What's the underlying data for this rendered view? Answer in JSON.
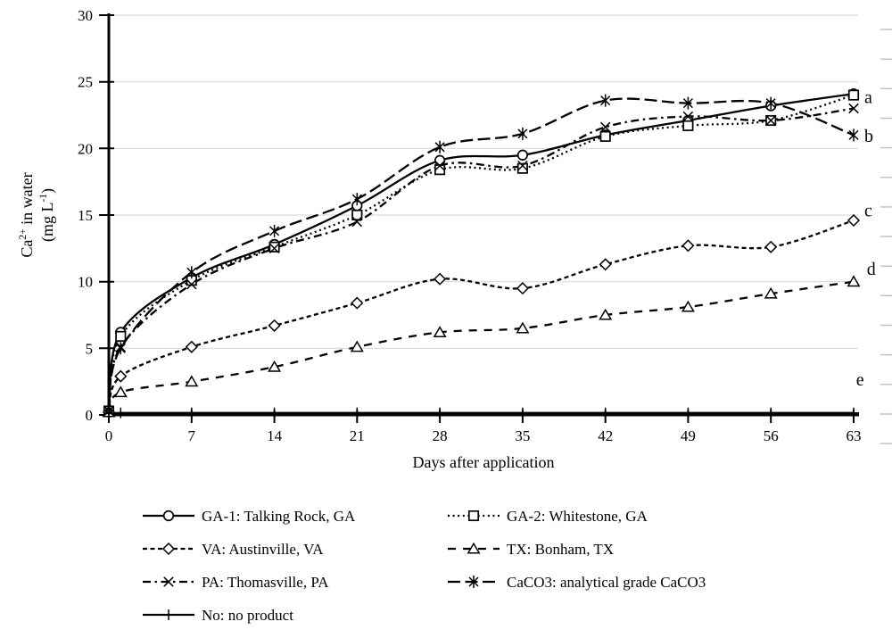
{
  "figure": {
    "background": "#ffffff"
  },
  "chart_data": {
    "type": "line",
    "title": "",
    "xlabel": "Days after application",
    "ylabel_rich": {
      "line1": [
        {
          "text": "Ca"
        },
        {
          "text": "2+",
          "sup": true
        },
        {
          "text": " in water"
        }
      ],
      "line2": [
        {
          "text": "(mg L"
        },
        {
          "text": "-1",
          "sup": true
        },
        {
          "text": ")"
        }
      ]
    },
    "x_days": [
      0,
      1,
      7,
      14,
      21,
      28,
      35,
      42,
      49,
      56,
      63
    ],
    "xticks": [
      "0",
      "7",
      "14",
      "21",
      "28",
      "35",
      "42",
      "49",
      "56",
      "63"
    ],
    "xtick_values": [
      0,
      7,
      14,
      21,
      28,
      35,
      42,
      49,
      56,
      63
    ],
    "yticks": [
      "0",
      "5",
      "10",
      "15",
      "20",
      "25",
      "30"
    ],
    "ytick_values": [
      0,
      5,
      10,
      15,
      20,
      25,
      30
    ],
    "xlim": [
      0,
      63
    ],
    "ylim": [
      0,
      30
    ],
    "grid": true,
    "legend_position": "bottom-two-columns",
    "series": [
      {
        "name": "GA-1: Talking Rock, GA",
        "marker": "circle",
        "line_style": "solid",
        "values": [
          0.3,
          6.2,
          10.3,
          12.8,
          15.7,
          19.1,
          19.5,
          21.0,
          22.1,
          23.2,
          24.1
        ]
      },
      {
        "name": "GA-2: Whitestone, GA",
        "marker": "square",
        "line_style": "dotted",
        "values": [
          0.3,
          5.9,
          10.1,
          12.6,
          15.0,
          18.4,
          18.5,
          20.9,
          21.7,
          22.1,
          24.0
        ]
      },
      {
        "name": "VA: Austinville, VA",
        "marker": "diamond",
        "line_style": "dashed",
        "values": [
          0.2,
          2.9,
          5.1,
          6.7,
          8.4,
          10.2,
          9.5,
          11.3,
          12.7,
          12.6,
          14.6
        ]
      },
      {
        "name": "TX: Bonham, TX",
        "marker": "triangle",
        "line_style": "longdash",
        "values": [
          0.2,
          1.7,
          2.5,
          3.6,
          5.1,
          6.2,
          6.5,
          7.5,
          8.1,
          9.1,
          10.0
        ]
      },
      {
        "name": "PA: Thomasville, PA",
        "marker": "x",
        "line_style": "dashdot",
        "values": [
          0.3,
          5.1,
          9.8,
          12.5,
          14.5,
          18.7,
          18.7,
          21.6,
          22.4,
          22.1,
          23.0
        ]
      },
      {
        "name": "CaCO3: analytical grade CaCO3",
        "marker": "star",
        "line_style": "longdash2",
        "values": [
          0.3,
          5.0,
          10.7,
          13.8,
          16.2,
          20.1,
          21.1,
          23.6,
          23.4,
          23.4,
          21.0
        ]
      },
      {
        "name": "No: no product",
        "marker": "plus",
        "line_style": "solid",
        "values": [
          0.1,
          0.15,
          0.15,
          0.15,
          0.15,
          0.15,
          0.15,
          0.15,
          0.15,
          0.15,
          0.15
        ]
      }
    ],
    "annotations": [
      {
        "label": "a",
        "day": 63,
        "value": 23.8
      },
      {
        "label": "b",
        "day": 63,
        "value": 20.9
      },
      {
        "label": "c",
        "day": 63,
        "value": 15.3
      },
      {
        "label": "d",
        "day": 63.2,
        "value": 10.9
      },
      {
        "label": "e",
        "day": 62.3,
        "value": 2.6
      }
    ],
    "colors": {
      "series": "#000000",
      "grid": "#d9d9d9",
      "right_ticks": "#bfbfbf",
      "axis": "#000000"
    }
  }
}
